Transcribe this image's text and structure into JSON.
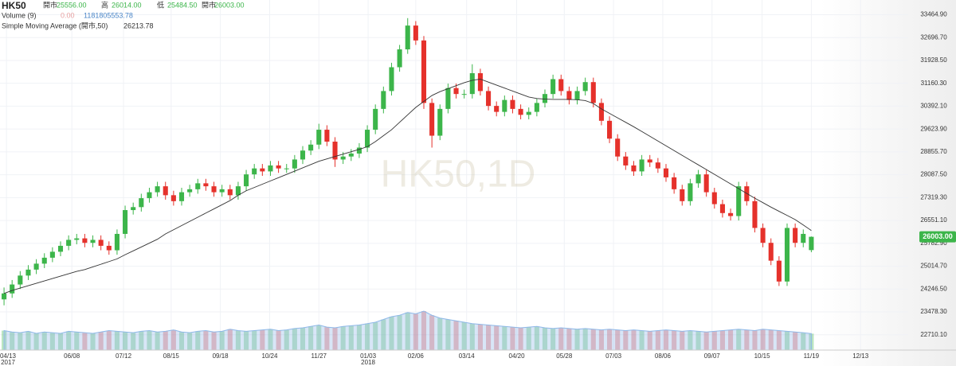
{
  "chart_data": {
    "type": "candlestick",
    "symbol": "HK50",
    "watermark": "HK50,1D",
    "quote": [
      {
        "name": "開市",
        "value": 25556,
        "label": "25556.00"
      },
      {
        "name": "高",
        "value": 26014,
        "label": "26014.00"
      },
      {
        "name": "低",
        "value": 25484.5,
        "label": "25484.50"
      },
      {
        "name": "開市",
        "value": 26003,
        "label": "26003.00"
      }
    ],
    "volume_legend": {
      "name": "Volume (9)",
      "readings": [
        {
          "value": 0,
          "label": "0.00"
        },
        {
          "value": 1181805553.78,
          "label": "1181805553.78"
        }
      ]
    },
    "sma_legend": {
      "name": "Simple Moving Average (開市,50)",
      "reading": {
        "value": 26213.78,
        "label": "26213.78"
      }
    },
    "last_price": {
      "value": 26003,
      "label": "26003.00"
    },
    "up_color": "#3cb54a",
    "down_color": "#e5312b",
    "sma_color": "#333333",
    "volume_color": "#8fb8e8",
    "xlim": [
      -0.5,
      112
    ],
    "ylim": [
      22196,
      33959
    ],
    "volume_ylim": [
      0,
      8000000000
    ],
    "grid": true,
    "xticks": [
      {
        "value": 0.3,
        "label": "04/13"
      },
      {
        "value": 8.4,
        "label": "06/08"
      },
      {
        "value": 14.8,
        "label": "07/12"
      },
      {
        "value": 20.7,
        "label": "08/15"
      },
      {
        "value": 26.8,
        "label": "09/18"
      },
      {
        "value": 32.9,
        "label": "10/24"
      },
      {
        "value": 39.0,
        "label": "11/27"
      },
      {
        "value": 45.1,
        "label": "01/03"
      },
      {
        "value": 51.0,
        "label": "02/06"
      },
      {
        "value": 57.3,
        "label": "03/14"
      },
      {
        "value": 63.5,
        "label": "04/20"
      },
      {
        "value": 69.4,
        "label": "05/28"
      },
      {
        "value": 75.5,
        "label": "07/03"
      },
      {
        "value": 81.6,
        "label": "08/06"
      },
      {
        "value": 87.7,
        "label": "09/07"
      },
      {
        "value": 93.9,
        "label": "10/15"
      },
      {
        "value": 100.0,
        "label": "11/19"
      },
      {
        "value": 106.1,
        "label": "12/13"
      }
    ],
    "year_labels": [
      {
        "value": 0.3,
        "label": "2017"
      },
      {
        "value": 45.1,
        "label": "2018"
      }
    ],
    "yticks": [
      {
        "value": 33464.9,
        "label": "33464.90"
      },
      {
        "value": 32696.7,
        "label": "32696.70"
      },
      {
        "value": 31928.5,
        "label": "31928.50"
      },
      {
        "value": 31160.3,
        "label": "31160.30"
      },
      {
        "value": 30392.1,
        "label": "30392.10"
      },
      {
        "value": 29623.9,
        "label": "29623.90"
      },
      {
        "value": 28855.7,
        "label": "28855.70"
      },
      {
        "value": 28087.5,
        "label": "28087.50"
      },
      {
        "value": 27319.3,
        "label": "27319.30"
      },
      {
        "value": 26551.1,
        "label": "26551.10"
      },
      {
        "value": 25782.9,
        "label": "25782.90"
      },
      {
        "value": 25014.7,
        "label": "25014.70"
      },
      {
        "value": 24246.5,
        "label": "24246.50"
      },
      {
        "value": 23478.3,
        "label": "23478.30"
      },
      {
        "value": 22710.1,
        "label": "22710.10"
      }
    ],
    "x": [
      0,
      1,
      2,
      3,
      4,
      5,
      6,
      7,
      8,
      9,
      10,
      11,
      12,
      13,
      14,
      15,
      16,
      17,
      18,
      19,
      20,
      21,
      22,
      23,
      24,
      25,
      26,
      27,
      28,
      29,
      30,
      31,
      32,
      33,
      34,
      35,
      36,
      37,
      38,
      39,
      40,
      41,
      42,
      43,
      44,
      45,
      46,
      47,
      48,
      49,
      50,
      51,
      52,
      53,
      54,
      55,
      56,
      57,
      58,
      59,
      60,
      61,
      62,
      63,
      64,
      65,
      66,
      67,
      68,
      69,
      70,
      71,
      72,
      73,
      74,
      75,
      76,
      77,
      78,
      79,
      80,
      81,
      82,
      83,
      84,
      85,
      86,
      87,
      88,
      89,
      90,
      91,
      92,
      93,
      94,
      95,
      96,
      97,
      98,
      99,
      100
    ],
    "open": [
      23900,
      24100,
      24400,
      24700,
      24900,
      25100,
      25300,
      25500,
      25700,
      25900,
      25950,
      25800,
      25900,
      25700,
      25550,
      26100,
      26900,
      27000,
      27300,
      27500,
      27700,
      27400,
      27200,
      27500,
      27600,
      27800,
      27700,
      27500,
      27600,
      27400,
      27700,
      28100,
      28300,
      28200,
      28400,
      28300,
      28300,
      28600,
      28900,
      29100,
      29600,
      29200,
      28600,
      28700,
      28800,
      29000,
      29600,
      30300,
      30900,
      31700,
      32300,
      33100,
      32600,
      30500,
      29400,
      30300,
      31000,
      30800,
      30800,
      31500,
      30900,
      30400,
      30200,
      30600,
      30300,
      30100,
      30200,
      30500,
      30800,
      31300,
      30900,
      30600,
      30900,
      31200,
      30500,
      29900,
      29300,
      28700,
      28400,
      28200,
      28600,
      28500,
      28300,
      28000,
      27600,
      27200,
      27800,
      28100,
      27500,
      27100,
      26800,
      26700,
      27700,
      27200,
      26300,
      25800,
      25200,
      24500,
      26300,
      25800,
      25556
    ],
    "high": [
      24300,
      24550,
      24850,
      25050,
      25250,
      25450,
      25650,
      25850,
      26050,
      26100,
      26100,
      26050,
      26050,
      25850,
      26250,
      27050,
      27150,
      27450,
      27650,
      27850,
      27850,
      27550,
      27650,
      27750,
      27950,
      27950,
      27850,
      27750,
      27750,
      27850,
      28250,
      28450,
      28450,
      28550,
      28550,
      28450,
      28750,
      29050,
      29250,
      29800,
      29750,
      29350,
      28850,
      28950,
      29150,
      29750,
      30450,
      31050,
      31850,
      32450,
      33350,
      33250,
      32750,
      30650,
      30450,
      31150,
      31150,
      30950,
      31800,
      31650,
      31050,
      30550,
      30750,
      30750,
      30450,
      30350,
      30650,
      30950,
      31450,
      31450,
      31050,
      31050,
      31350,
      31350,
      30650,
      30050,
      29450,
      28850,
      28550,
      28750,
      28750,
      28650,
      28450,
      28150,
      27750,
      27950,
      28250,
      28250,
      27650,
      27250,
      26950,
      27850,
      27850,
      27350,
      26450,
      25950,
      25350,
      26450,
      26450,
      26250,
      26014
    ],
    "low": [
      23700,
      23950,
      24250,
      24550,
      24750,
      24950,
      25150,
      25350,
      25550,
      25750,
      25650,
      25650,
      25550,
      25400,
      25400,
      25950,
      26750,
      26850,
      27150,
      27350,
      27250,
      27050,
      27050,
      27350,
      27450,
      27550,
      27350,
      27350,
      27250,
      27250,
      27550,
      27950,
      28050,
      28050,
      28150,
      28150,
      28150,
      28450,
      28750,
      28950,
      29050,
      28350,
      28450,
      28550,
      28650,
      28850,
      29450,
      30150,
      30750,
      31550,
      32150,
      32450,
      30300,
      29000,
      29250,
      30150,
      30650,
      30650,
      30650,
      30750,
      30250,
      30050,
      30050,
      30150,
      29950,
      29950,
      30050,
      30350,
      30650,
      30750,
      30450,
      30450,
      30750,
      30350,
      29750,
      29150,
      28550,
      28250,
      28050,
      28050,
      28350,
      28150,
      27850,
      27450,
      27050,
      27050,
      27650,
      27350,
      26950,
      26650,
      26550,
      26550,
      27050,
      26150,
      25650,
      25050,
      24350,
      24350,
      25650,
      25650,
      25484.5
    ],
    "close": [
      24100,
      24400,
      24700,
      24900,
      25100,
      25300,
      25500,
      25700,
      25900,
      25950,
      25800,
      25900,
      25700,
      25550,
      26100,
      26900,
      27000,
      27300,
      27500,
      27700,
      27400,
      27200,
      27500,
      27600,
      27800,
      27700,
      27500,
      27600,
      27400,
      27700,
      28100,
      28300,
      28200,
      28400,
      28300,
      28300,
      28600,
      28900,
      29100,
      29600,
      29200,
      28600,
      28700,
      28800,
      29000,
      29600,
      30300,
      30900,
      31700,
      32300,
      33100,
      32600,
      30500,
      29400,
      30300,
      31000,
      30800,
      30800,
      31500,
      30900,
      30400,
      30200,
      30600,
      30300,
      30100,
      30200,
      30500,
      30800,
      31300,
      30900,
      30600,
      30900,
      31200,
      30500,
      29900,
      29300,
      28700,
      28400,
      28200,
      28600,
      28500,
      28300,
      28000,
      27600,
      27200,
      27800,
      28100,
      27500,
      27100,
      26800,
      26700,
      27700,
      27200,
      26300,
      25800,
      25200,
      24500,
      26300,
      25800,
      26100,
      26003
    ],
    "sma": [
      24100,
      24200,
      24280,
      24360,
      24440,
      24520,
      24600,
      24680,
      24760,
      24840,
      24900,
      24990,
      25080,
      25170,
      25260,
      25400,
      25530,
      25660,
      25790,
      25920,
      26100,
      26240,
      26380,
      26520,
      26660,
      26800,
      26940,
      27080,
      27220,
      27400,
      27550,
      27660,
      27770,
      27880,
      27990,
      28100,
      28210,
      28320,
      28430,
      28540,
      28620,
      28700,
      28780,
      28860,
      28940,
      29030,
      29200,
      29400,
      29600,
      29850,
      30100,
      30350,
      30550,
      30750,
      30880,
      30980,
      31080,
      31180,
      31260,
      31300,
      31200,
      31100,
      31000,
      30900,
      30800,
      30700,
      30650,
      30630,
      30620,
      30620,
      30620,
      30610,
      30580,
      30480,
      30300,
      30150,
      30000,
      29850,
      29700,
      29540,
      29380,
      29220,
      29060,
      28900,
      28740,
      28580,
      28420,
      28260,
      28100,
      27940,
      27780,
      27620,
      27460,
      27300,
      27150,
      27000,
      26860,
      26720,
      26580,
      26400,
      26213.78
    ],
    "volume": [
      1400000000,
      1300000000,
      1250000000,
      1350000000,
      1200000000,
      1300000000,
      1250000000,
      1200000000,
      1350000000,
      1300000000,
      1250000000,
      1200000000,
      1300000000,
      1400000000,
      1350000000,
      1300000000,
      1250000000,
      1350000000,
      1400000000,
      1300000000,
      1350000000,
      1450000000,
      1300000000,
      1250000000,
      1350000000,
      1400000000,
      1300000000,
      1350000000,
      1500000000,
      1400000000,
      1350000000,
      1400000000,
      1450000000,
      1500000000,
      1400000000,
      1450000000,
      1550000000,
      1600000000,
      1700000000,
      1800000000,
      1650000000,
      1600000000,
      1700000000,
      1750000000,
      1800000000,
      1900000000,
      2000000000,
      2200000000,
      2400000000,
      2500000000,
      2700000000,
      2600000000,
      2800000000,
      2500000000,
      2300000000,
      2200000000,
      2100000000,
      2000000000,
      1900000000,
      1850000000,
      1800000000,
      1750000000,
      1700000000,
      1650000000,
      1600000000,
      1650000000,
      1700000000,
      1600000000,
      1550000000,
      1600000000,
      1550000000,
      1500000000,
      1550000000,
      1500000000,
      1450000000,
      1500000000,
      1450000000,
      1400000000,
      1450000000,
      1400000000,
      1350000000,
      1400000000,
      1450000000,
      1400000000,
      1350000000,
      1400000000,
      1350000000,
      1300000000,
      1350000000,
      1400000000,
      1450000000,
      1500000000,
      1450000000,
      1400000000,
      1500000000,
      1450000000,
      1400000000,
      1350000000,
      1300000000,
      1250000000,
      1181805553.78
    ]
  }
}
